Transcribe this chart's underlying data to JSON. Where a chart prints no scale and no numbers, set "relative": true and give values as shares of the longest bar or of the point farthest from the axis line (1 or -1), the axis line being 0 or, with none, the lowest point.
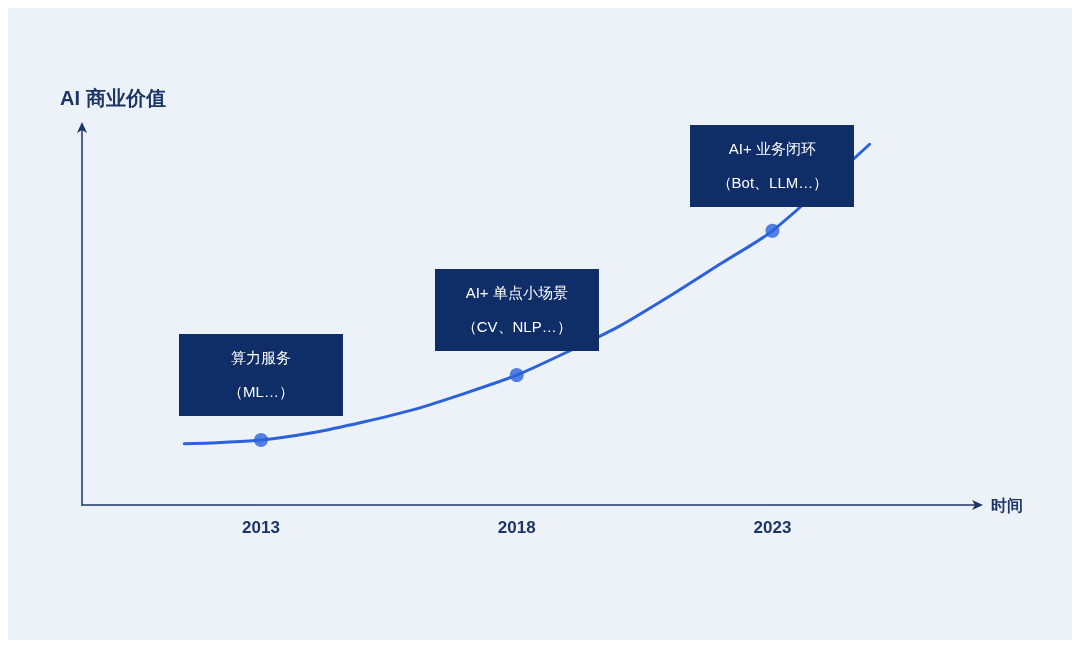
{
  "chart_data": {
    "type": "line",
    "ylabel": "AI 商业价值",
    "xlabel": "时间",
    "relative": true,
    "xlim": [
      2009.5,
      2027
    ],
    "xticks": [
      2013,
      2018,
      2023
    ],
    "tick_labels": "x",
    "annotations": [
      "算力服务",
      "（ML…）",
      "AI+ 单点小场景",
      "（CV、NLP…）",
      "AI+ 业务闭环",
      "（Bot、LLM…）"
    ],
    "series": [
      {
        "color": "#2b62dc",
        "marker": "none",
        "x": [
          2011.5,
          2012,
          2013,
          2014,
          2015,
          2016,
          2017,
          2018,
          2019,
          2020,
          2021,
          2022,
          2023,
          2024.9
        ],
        "values": [
          0.17,
          0.172,
          0.18,
          0.2,
          0.23,
          0.265,
          0.31,
          0.36,
          0.425,
          0.495,
          0.58,
          0.67,
          0.76,
          1
        ]
      },
      {
        "type": "scatter",
        "color": "#2b62dc",
        "marker": "circle",
        "x": [
          2013,
          2018,
          2023
        ],
        "values": [
          0.18,
          0.36,
          0.76
        ]
      }
    ]
  }
}
